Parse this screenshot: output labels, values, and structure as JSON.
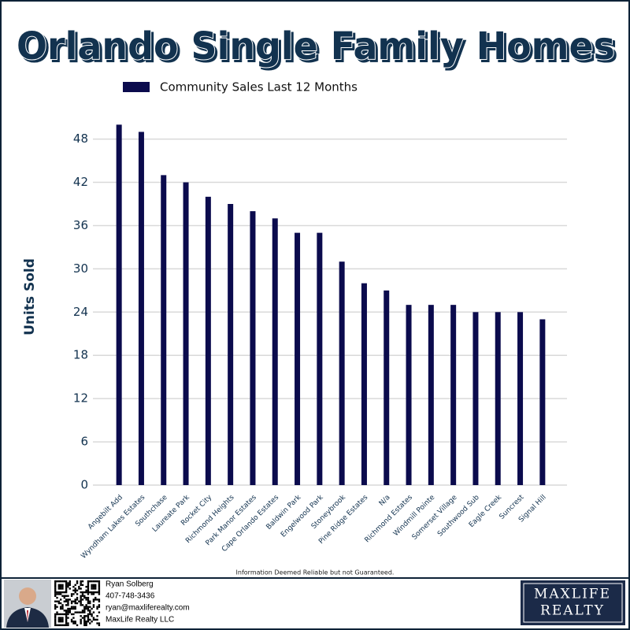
{
  "chart_data": {
    "type": "bar",
    "title": "Orlando Single Family Homes",
    "y_label": "Units Sold",
    "categories": [
      "Angebilt Add",
      "Wyndham Lakes Estates",
      "Southchase",
      "Laureate Park",
      "Rocket City",
      "Richmond Heights",
      "Park Manor Estates",
      "Cape Orlando Estates",
      "Baldwin Park",
      "Engelwood Park",
      "Stoneybrook",
      "Pine Ridge Estates",
      "N/a",
      "Richmond Estates",
      "Windmill Pointe",
      "Somerset Village",
      "Southwood Sub",
      "Eagle Creek",
      "Suncrest",
      "Signal Hill"
    ],
    "series": [
      {
        "name": "Community Sales Last 12 Months",
        "color": "#0b0b4d",
        "values": [
          50,
          49,
          43,
          42,
          40,
          39,
          38,
          37,
          35,
          35,
          31,
          28,
          27,
          25,
          25,
          25,
          24,
          24,
          24,
          23
        ]
      }
    ],
    "ylim": [
      0,
      52
    ],
    "yticks": [
      0,
      6,
      12,
      18,
      24,
      30,
      36,
      42,
      48
    ],
    "grid": true,
    "note": "Information Deemed Reliable but not Guaranteed."
  },
  "footer": {
    "name": "Ryan Solberg",
    "phone": "407-748-3436",
    "email": "ryan@maxliferealty.com",
    "company": "MaxLife Realty LLC",
    "logo_line1": "MAXLIFE",
    "logo_line2": "REALTY"
  }
}
